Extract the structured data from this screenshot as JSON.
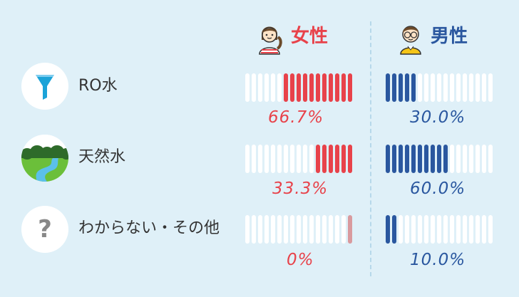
{
  "headers": [
    {
      "label": "女性",
      "color": "#e8424a"
    },
    {
      "label": "男性",
      "color": "#2a579f"
    }
  ],
  "rows": [
    {
      "label": "RO水",
      "icon": "funnel-icon"
    },
    {
      "label": "天然水",
      "icon": "landscape-icon"
    },
    {
      "label": "わからない・その他",
      "icon": "question-mark-icon"
    }
  ],
  "colors": {
    "female": "#e8424a",
    "male": "#2a579f",
    "empty": "#ffffff",
    "female_small": "#d99a9e"
  },
  "chart_data": {
    "type": "bar",
    "categories": [
      "RO水",
      "天然水",
      "わからない・その他"
    ],
    "series": [
      {
        "name": "女性",
        "values": [
          66.7,
          33.3,
          0
        ],
        "labels": [
          "66.7%",
          "33.3%",
          "0%"
        ]
      },
      {
        "name": "男性",
        "values": [
          30.0,
          60.0,
          10.0
        ],
        "labels": [
          "30.0%",
          "60.0%",
          "10.0%"
        ]
      }
    ],
    "ylim": [
      0,
      100
    ]
  }
}
